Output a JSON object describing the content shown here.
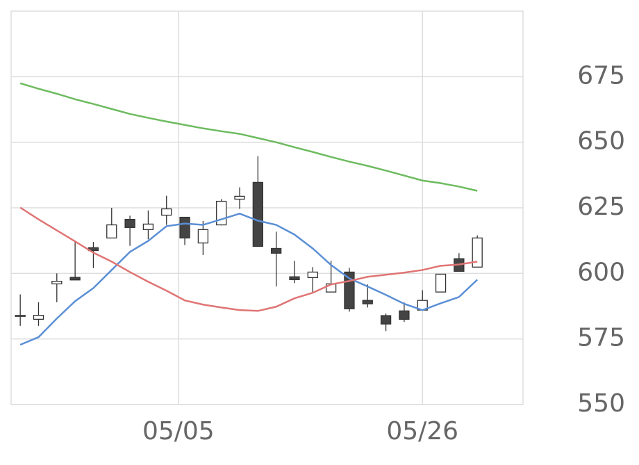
{
  "chart_data": {
    "type": "candlestick",
    "categories": [
      null,
      null,
      null,
      null,
      null,
      null,
      null,
      null,
      null,
      null,
      null,
      null,
      null,
      null,
      null,
      null,
      null,
      null,
      null,
      null,
      null,
      null,
      null,
      null,
      null,
      null
    ],
    "open": [
      584,
      582.5,
      596,
      598.5,
      609.8,
      613.5,
      620.6,
      616.7,
      622.2,
      621.4,
      611.6,
      618.5,
      628.3,
      634.7,
      609.5,
      598.7,
      598.4,
      592.9,
      600.5,
      589.7,
      583.9,
      585.7,
      586,
      592.9,
      605.6,
      602.4
    ],
    "high": [
      592,
      589,
      600,
      612.5,
      612,
      625,
      622,
      624,
      629.6,
      621.4,
      620,
      628.3,
      632.8,
      644.7,
      615.9,
      604.8,
      602.4,
      604.8,
      602.1,
      595.8,
      584.7,
      588.9,
      593.6,
      599.7,
      607.7,
      614.5
    ],
    "low": [
      580,
      580,
      589,
      598,
      602,
      613.5,
      610.5,
      613,
      618.5,
      610.8,
      607,
      618.3,
      624.6,
      610.3,
      595,
      596.3,
      592.9,
      592.9,
      585.4,
      587,
      578,
      581.5,
      585.7,
      592.9,
      600.8,
      602.4
    ],
    "close": [
      584,
      584,
      597,
      597.5,
      608.7,
      618.5,
      617.5,
      618.8,
      624.6,
      613.5,
      616.7,
      627.5,
      629.4,
      610.3,
      607.7,
      597.6,
      600.5,
      596,
      586.5,
      588.4,
      580.7,
      582.5,
      589.7,
      599.7,
      600.8,
      613.5
    ],
    "up_color": "#ffffff",
    "down_color": "#444444",
    "lines": [
      {
        "color": "#5b8fd6",
        "values": [
          572.8,
          575.7,
          582.8,
          589.4,
          594.4,
          601.3,
          608.2,
          612.4,
          618,
          619,
          618.5,
          620.6,
          622.8,
          620.1,
          618.5,
          614.8,
          609.5,
          603.2,
          598.1,
          595,
          591.8,
          588.4,
          586,
          588.6,
          591,
          597.6
        ]
      },
      {
        "color": "#e07474",
        "values": [
          625.1,
          620.6,
          616.4,
          612.2,
          607.9,
          604.5,
          600.5,
          596.8,
          593.4,
          589.7,
          588.1,
          587,
          586,
          585.7,
          587.3,
          590.5,
          592.6,
          595.8,
          597.1,
          598.7,
          599.5,
          600.3,
          601.3,
          602.9,
          603.4,
          604.5
        ]
      },
      {
        "color": "#6dbb5f",
        "values": [
          672.5,
          670.4,
          668.5,
          666.4,
          664.6,
          662.7,
          660.8,
          659.3,
          657.9,
          656.6,
          655.3,
          654.2,
          653.2,
          651.6,
          650,
          648.1,
          646.3,
          644.4,
          642.6,
          641,
          639.2,
          637.3,
          635.4,
          634.4,
          633.1,
          631.5
        ]
      }
    ],
    "xlim": [
      -0.5,
      27.5
    ],
    "xticks": [
      {
        "value": 8.65,
        "label": "05/05"
      },
      {
        "value": 22,
        "label": "05/26"
      }
    ],
    "ylim": [
      550,
      700
    ],
    "yticks": [
      550,
      575,
      600,
      625,
      650,
      675
    ],
    "grid": true
  }
}
